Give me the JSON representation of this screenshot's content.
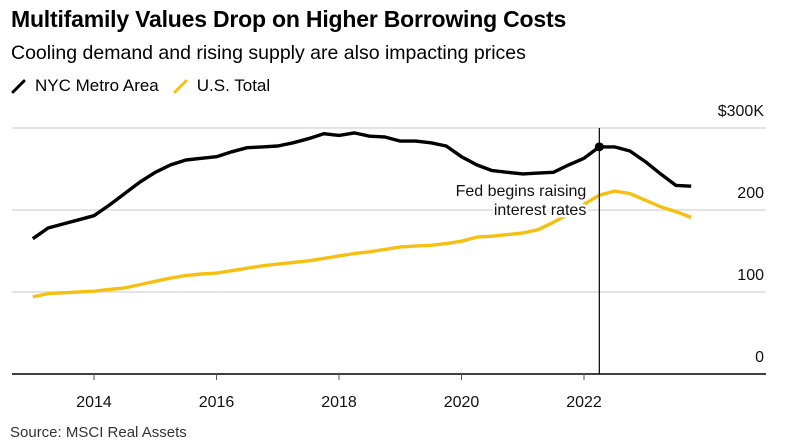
{
  "header": {
    "title": "Multifamily Values Drop on Higher Borrowing Costs",
    "subtitle": "Cooling demand and rising supply are also impacting prices"
  },
  "legend": [
    {
      "label": "NYC Metro Area",
      "color": "#000000",
      "icon": "line-swatch-icon"
    },
    {
      "label": "U.S. Total",
      "color": "#f5c012",
      "icon": "line-swatch-icon"
    }
  ],
  "footer": {
    "source": "Source: MSCI Real Assets"
  },
  "chart_data": {
    "type": "line",
    "title": "Multifamily Values Drop on Higher Borrowing Costs",
    "subtitle": "Cooling demand and rising supply are also impacting prices",
    "xlabel": "",
    "ylabel": "",
    "xlim": [
      2012.0,
      2024.6
    ],
    "ylim": [
      0,
      300
    ],
    "grid": true,
    "legend_position": "top-left",
    "y_axis_position": "right",
    "x_ticks": [
      2014,
      2016,
      2018,
      2020,
      2022
    ],
    "x_tick_labels": [
      "2014",
      "2016",
      "2018",
      "2020",
      "2022"
    ],
    "y_ticks": [
      0,
      100,
      200,
      300
    ],
    "y_tick_labels": [
      "0",
      "100",
      "200",
      "$300K"
    ],
    "x": [
      2013.0,
      2013.25,
      2013.5,
      2013.75,
      2014.0,
      2014.25,
      2014.5,
      2014.75,
      2015.0,
      2015.25,
      2015.5,
      2015.75,
      2016.0,
      2016.25,
      2016.5,
      2016.75,
      2017.0,
      2017.25,
      2017.5,
      2017.75,
      2018.0,
      2018.25,
      2018.5,
      2018.75,
      2019.0,
      2019.25,
      2019.5,
      2019.75,
      2020.0,
      2020.25,
      2020.5,
      2020.75,
      2021.0,
      2021.25,
      2021.5,
      2021.75,
      2022.0,
      2022.25,
      2022.5,
      2022.75,
      2023.0,
      2023.25,
      2023.5,
      2023.75
    ],
    "series": [
      {
        "name": "NYC Metro Area",
        "color": "#000000",
        "values": [
          165,
          178,
          183,
          188,
          193,
          206,
          220,
          234,
          246,
          255,
          261,
          263,
          265,
          271,
          276,
          277,
          278,
          282,
          287,
          293,
          291,
          294,
          290,
          289,
          284,
          284,
          282,
          278,
          265,
          255,
          248,
          246,
          244,
          245,
          246,
          255,
          263,
          277,
          277,
          272,
          259,
          244,
          230,
          229
        ]
      },
      {
        "name": "U.S. Total",
        "color": "#f5c012",
        "values": [
          94,
          98,
          99,
          100,
          101,
          103,
          105,
          109,
          113,
          117,
          120,
          122,
          123,
          126,
          129,
          132,
          134,
          136,
          138,
          141,
          144,
          147,
          149,
          152,
          155,
          156,
          157,
          159,
          162,
          167,
          168,
          170,
          172,
          176,
          185,
          195,
          207,
          218,
          223,
          220,
          212,
          204,
          198,
          191
        ]
      }
    ],
    "annotations": [
      {
        "x": 2022.25,
        "series": "NYC Metro Area",
        "value": 277,
        "marker": "dot",
        "vertical_line": true,
        "text_lines": [
          "Fed begins raising",
          "interest rates"
        ]
      }
    ]
  }
}
